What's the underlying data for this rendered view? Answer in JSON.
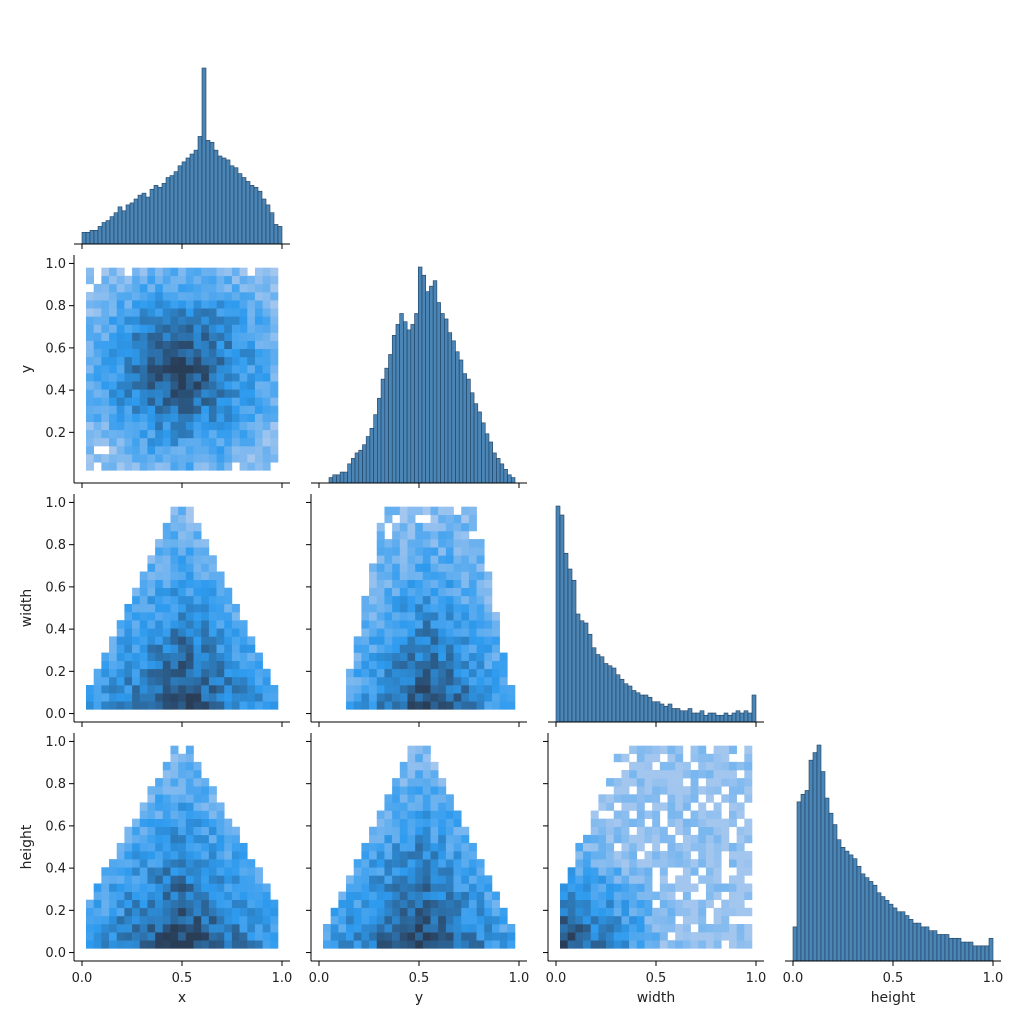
{
  "chart_data": {
    "type": "pairplot",
    "variables": [
      "x",
      "y",
      "width",
      "height"
    ],
    "axis_range": [
      -0.04,
      1.04
    ],
    "ticks": [
      0.0,
      0.5,
      1.0
    ],
    "ticks_y": [
      0.2,
      0.4,
      0.6,
      0.8,
      1.0
    ],
    "ticks_y_full": [
      0.0,
      0.2,
      0.4,
      0.6,
      0.8,
      1.0
    ],
    "tick_labels_x": [
      "0.0",
      "0.5",
      "1.0"
    ],
    "tick_labels_y": [
      "0.2",
      "0.4",
      "0.6",
      "0.8",
      "1.0"
    ],
    "tick_labels_y_full": [
      "0.0",
      "0.2",
      "0.4",
      "0.6",
      "0.8",
      "1.0"
    ],
    "xlabels": [
      "x",
      "y",
      "width",
      "height"
    ],
    "ylabels": [
      "y",
      "width",
      "height"
    ],
    "colors": {
      "hist_fill": "#4a85b5",
      "hist_edge": "#1f3f5f",
      "heat_light": "#a8c8ef",
      "heat_mid": "#2e9bef",
      "heat_dark": "#2a3d57",
      "axis": "#000000"
    },
    "histograms": [
      {
        "variable": "x",
        "bins": 50,
        "range": [
          0.0,
          1.0
        ],
        "counts": [
          6,
          6,
          7,
          7,
          9,
          11,
          12,
          14,
          16,
          19,
          17,
          20,
          21,
          23,
          25,
          26,
          24,
          28,
          30,
          29,
          31,
          34,
          35,
          37,
          40,
          42,
          44,
          46,
          48,
          55,
          90,
          53,
          52,
          48,
          45,
          44,
          43,
          40,
          39,
          36,
          34,
          32,
          30,
          29,
          27,
          23,
          20,
          16,
          10,
          9
        ]
      },
      {
        "variable": "y",
        "bins": 50,
        "range": [
          0.05,
          0.98
        ],
        "counts": [
          2,
          3,
          3,
          4,
          4,
          7,
          9,
          11,
          12,
          14,
          17,
          20,
          25,
          31,
          38,
          42,
          47,
          54,
          58,
          62,
          59,
          56,
          58,
          62,
          79,
          76,
          70,
          72,
          74,
          66,
          62,
          60,
          55,
          52,
          48,
          45,
          40,
          38,
          33,
          29,
          26,
          22,
          18,
          15,
          11,
          9,
          7,
          5,
          3,
          2
        ]
      },
      {
        "variable": "width",
        "bins": 50,
        "range": [
          0.0,
          1.0
        ],
        "counts": [
          96,
          92,
          75,
          68,
          63,
          48,
          45,
          44,
          39,
          33,
          30,
          29,
          26,
          25,
          24,
          21,
          19,
          17,
          16,
          14,
          13,
          12,
          12,
          11,
          9,
          9,
          8,
          7,
          8,
          6,
          6,
          5,
          5,
          6,
          4,
          4,
          5,
          3,
          4,
          4,
          3,
          3,
          4,
          3,
          4,
          5,
          4,
          5,
          4,
          12
        ]
      },
      {
        "variable": "height",
        "bins": 50,
        "range": [
          0.0,
          1.0
        ],
        "counts": [
          9,
          42,
          44,
          45,
          53,
          55,
          57,
          50,
          43,
          39,
          36,
          32,
          30,
          29,
          28,
          27,
          25,
          23,
          22,
          21,
          20,
          18,
          17,
          16,
          15,
          14,
          13,
          13,
          12,
          11,
          10,
          10,
          9,
          9,
          8,
          8,
          7,
          7,
          7,
          6,
          6,
          6,
          5,
          5,
          5,
          4,
          4,
          4,
          4,
          6
        ]
      }
    ],
    "heatmaps": [
      {
        "row": "y",
        "col": "x",
        "shape": "round-blob",
        "peak": [
          0.5,
          0.5
        ]
      },
      {
        "row": "width",
        "col": "x",
        "shape": "triangle",
        "apex": [
          0.5,
          1.0
        ]
      },
      {
        "row": "width",
        "col": "y",
        "shape": "column",
        "center": 0.55
      },
      {
        "row": "height",
        "col": "x",
        "shape": "triangle-wide",
        "apex": [
          0.5,
          1.0
        ]
      },
      {
        "row": "height",
        "col": "y",
        "shape": "triangle",
        "apex": [
          0.5,
          1.0
        ]
      },
      {
        "row": "height",
        "col": "width",
        "shape": "correlated",
        "peak": [
          0.05,
          0.05
        ]
      }
    ]
  }
}
